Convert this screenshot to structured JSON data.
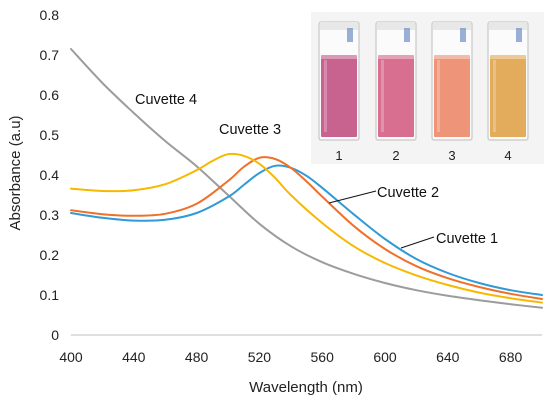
{
  "chart_data": {
    "type": "line",
    "title": "",
    "xlabel": "Wavelength (nm)",
    "ylabel": "Absorbance (a.u)",
    "xlim": [
      400,
      700
    ],
    "ylim": [
      0,
      0.8
    ],
    "xticks": [
      400,
      440,
      480,
      520,
      560,
      600,
      640,
      680
    ],
    "yticks": [
      0,
      0.1,
      0.2,
      0.3,
      0.4,
      0.5,
      0.6,
      0.7,
      0.8
    ],
    "ytick_labels": [
      "0",
      "0.1",
      "0.2",
      "0.3",
      "0.4",
      "0.5",
      "0.6",
      "0.7",
      "0.8"
    ],
    "grid": false,
    "series": [
      {
        "name": "Cuvette 1",
        "color": "#2E9BD6",
        "x": [
          400,
          420,
          440,
          460,
          480,
          500,
          510,
          520,
          530,
          540,
          550,
          560,
          580,
          600,
          620,
          640,
          660,
          680,
          700
        ],
        "y": [
          0.305,
          0.293,
          0.286,
          0.288,
          0.305,
          0.345,
          0.375,
          0.405,
          0.423,
          0.418,
          0.398,
          0.368,
          0.302,
          0.24,
          0.19,
          0.155,
          0.13,
          0.112,
          0.1
        ]
      },
      {
        "name": "Cuvette 2",
        "color": "#F0702B",
        "x": [
          400,
          420,
          440,
          460,
          480,
          500,
          510,
          520,
          530,
          540,
          550,
          560,
          580,
          600,
          620,
          640,
          660,
          680,
          700
        ],
        "y": [
          0.312,
          0.302,
          0.298,
          0.303,
          0.328,
          0.385,
          0.42,
          0.443,
          0.44,
          0.418,
          0.384,
          0.346,
          0.273,
          0.215,
          0.172,
          0.142,
          0.12,
          0.103,
          0.09
        ]
      },
      {
        "name": "Cuvette 3",
        "color": "#F7B800",
        "x": [
          400,
          420,
          440,
          460,
          480,
          490,
          500,
          510,
          520,
          530,
          540,
          560,
          580,
          600,
          620,
          640,
          660,
          680,
          700
        ],
        "y": [
          0.366,
          0.36,
          0.362,
          0.377,
          0.412,
          0.435,
          0.452,
          0.448,
          0.428,
          0.393,
          0.35,
          0.28,
          0.222,
          0.18,
          0.149,
          0.125,
          0.106,
          0.092,
          0.081
        ]
      },
      {
        "name": "Cuvette 4",
        "color": "#9C9C9C",
        "x": [
          400,
          420,
          440,
          460,
          480,
          500,
          520,
          540,
          560,
          580,
          600,
          620,
          640,
          660,
          680,
          700
        ],
        "y": [
          0.715,
          0.63,
          0.555,
          0.485,
          0.422,
          0.35,
          0.278,
          0.222,
          0.182,
          0.153,
          0.13,
          0.112,
          0.098,
          0.087,
          0.077,
          0.068
        ]
      }
    ]
  },
  "cuvette_photo": {
    "labels": [
      "1",
      "2",
      "3",
      "4"
    ],
    "liquid_colors": [
      "#C8638F",
      "#D96F90",
      "#EE9478",
      "#E3AC5C"
    ]
  }
}
